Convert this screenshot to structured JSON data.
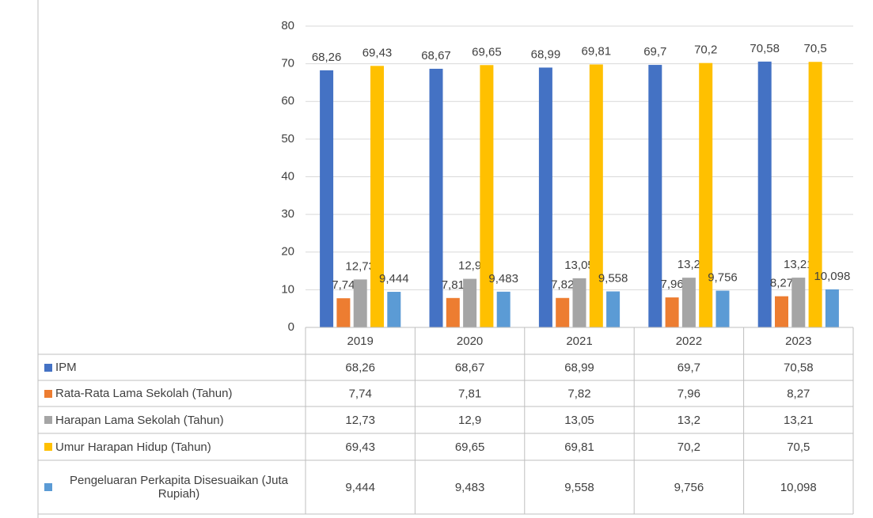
{
  "chart_data": {
    "type": "bar",
    "categories": [
      "2019",
      "2020",
      "2021",
      "2022",
      "2023"
    ],
    "series": [
      {
        "name": "IPM",
        "color": "#4472c4",
        "values": [
          68.26,
          68.67,
          68.99,
          69.7,
          70.58
        ],
        "value_labels": [
          "68,26",
          "68,67",
          "68,99",
          "69,7",
          "70,58"
        ]
      },
      {
        "name": "Rata-Rata Lama Sekolah (Tahun)",
        "color": "#ed7d31",
        "values": [
          7.74,
          7.81,
          7.82,
          7.96,
          8.27
        ],
        "value_labels": [
          "7,74",
          "7,81",
          "7,82",
          "7,96",
          "8,27"
        ]
      },
      {
        "name": "Harapan Lama Sekolah (Tahun)",
        "color": "#a5a5a5",
        "values": [
          12.73,
          12.9,
          13.05,
          13.2,
          13.21
        ],
        "value_labels": [
          "12,73",
          "12,9",
          "13,05",
          "13,2",
          "13,21"
        ]
      },
      {
        "name": "Umur Harapan Hidup (Tahun)",
        "color": "#ffc000",
        "values": [
          69.43,
          69.65,
          69.81,
          70.2,
          70.5
        ],
        "value_labels": [
          "69,43",
          "69,65",
          "69,81",
          "70,2",
          "70,5"
        ]
      },
      {
        "name": "Pengeluaran Perkapita Disesuaikan (Juta Rupiah)",
        "color": "#5b9bd5",
        "values": [
          9.444,
          9.483,
          9.558,
          9.756,
          10.098
        ],
        "value_labels": [
          "9,444",
          "9,483",
          "9,558",
          "9,756",
          "10,098"
        ]
      }
    ],
    "ylim": [
      0,
      80
    ],
    "yticks": [
      0,
      10,
      20,
      30,
      40,
      50,
      60,
      70,
      80
    ],
    "grid": true,
    "data_table": true
  }
}
